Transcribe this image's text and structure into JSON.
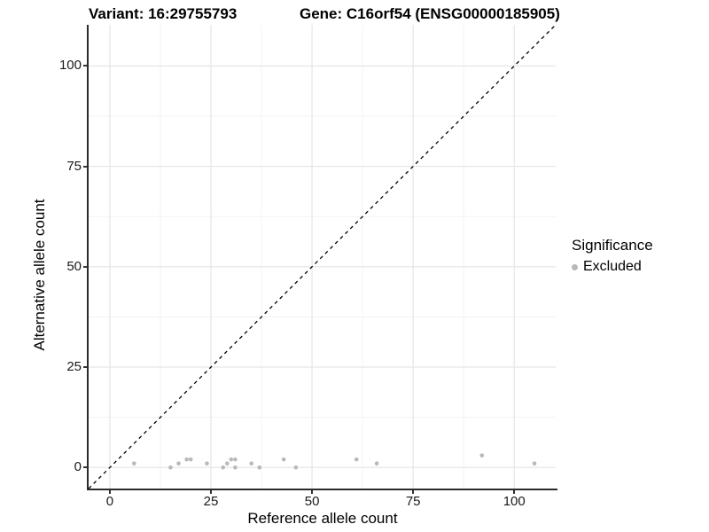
{
  "chart_data": {
    "type": "scatter",
    "title_left": "Variant: 16:29755793",
    "title_right": "Gene: C16orf54 (ENSG00000185905)",
    "xlabel": "Reference allele count",
    "ylabel": "Alternative allele count",
    "xlim": [
      -5.25,
      110.25
    ],
    "ylim": [
      -5.25,
      110.25
    ],
    "x_ticks": [
      0,
      25,
      50,
      75,
      100
    ],
    "y_ticks": [
      0,
      25,
      50,
      75,
      100
    ],
    "minor_ticks": [
      12.5,
      37.5,
      62.5,
      87.5
    ],
    "grid": true,
    "reference_line": {
      "type": "identity",
      "slope": 1,
      "intercept": 0,
      "style": "dashed"
    },
    "series": [
      {
        "name": "Excluded",
        "color": "#b9b9b9",
        "points": [
          {
            "x": 6,
            "y": 1
          },
          {
            "x": 15,
            "y": 0
          },
          {
            "x": 17,
            "y": 1
          },
          {
            "x": 19,
            "y": 2
          },
          {
            "x": 20,
            "y": 2
          },
          {
            "x": 24,
            "y": 1
          },
          {
            "x": 28,
            "y": 0
          },
          {
            "x": 29,
            "y": 1
          },
          {
            "x": 30,
            "y": 2
          },
          {
            "x": 31,
            "y": 2
          },
          {
            "x": 31,
            "y": 0
          },
          {
            "x": 35,
            "y": 1
          },
          {
            "x": 37,
            "y": 0
          },
          {
            "x": 43,
            "y": 2
          },
          {
            "x": 46,
            "y": 0
          },
          {
            "x": 61,
            "y": 2
          },
          {
            "x": 66,
            "y": 1
          },
          {
            "x": 92,
            "y": 3
          },
          {
            "x": 105,
            "y": 1
          }
        ]
      }
    ],
    "legend": {
      "title": "Significance",
      "position": "right",
      "entries": [
        {
          "label": "Excluded",
          "color": "#b9b9b9"
        }
      ]
    },
    "colors": {
      "point": "#b9b9b9",
      "grid_major": "#e7e7e7",
      "grid_minor": "#f3f3f3",
      "axis_line": "#2b2b2b",
      "reference_line": "#000000"
    }
  }
}
